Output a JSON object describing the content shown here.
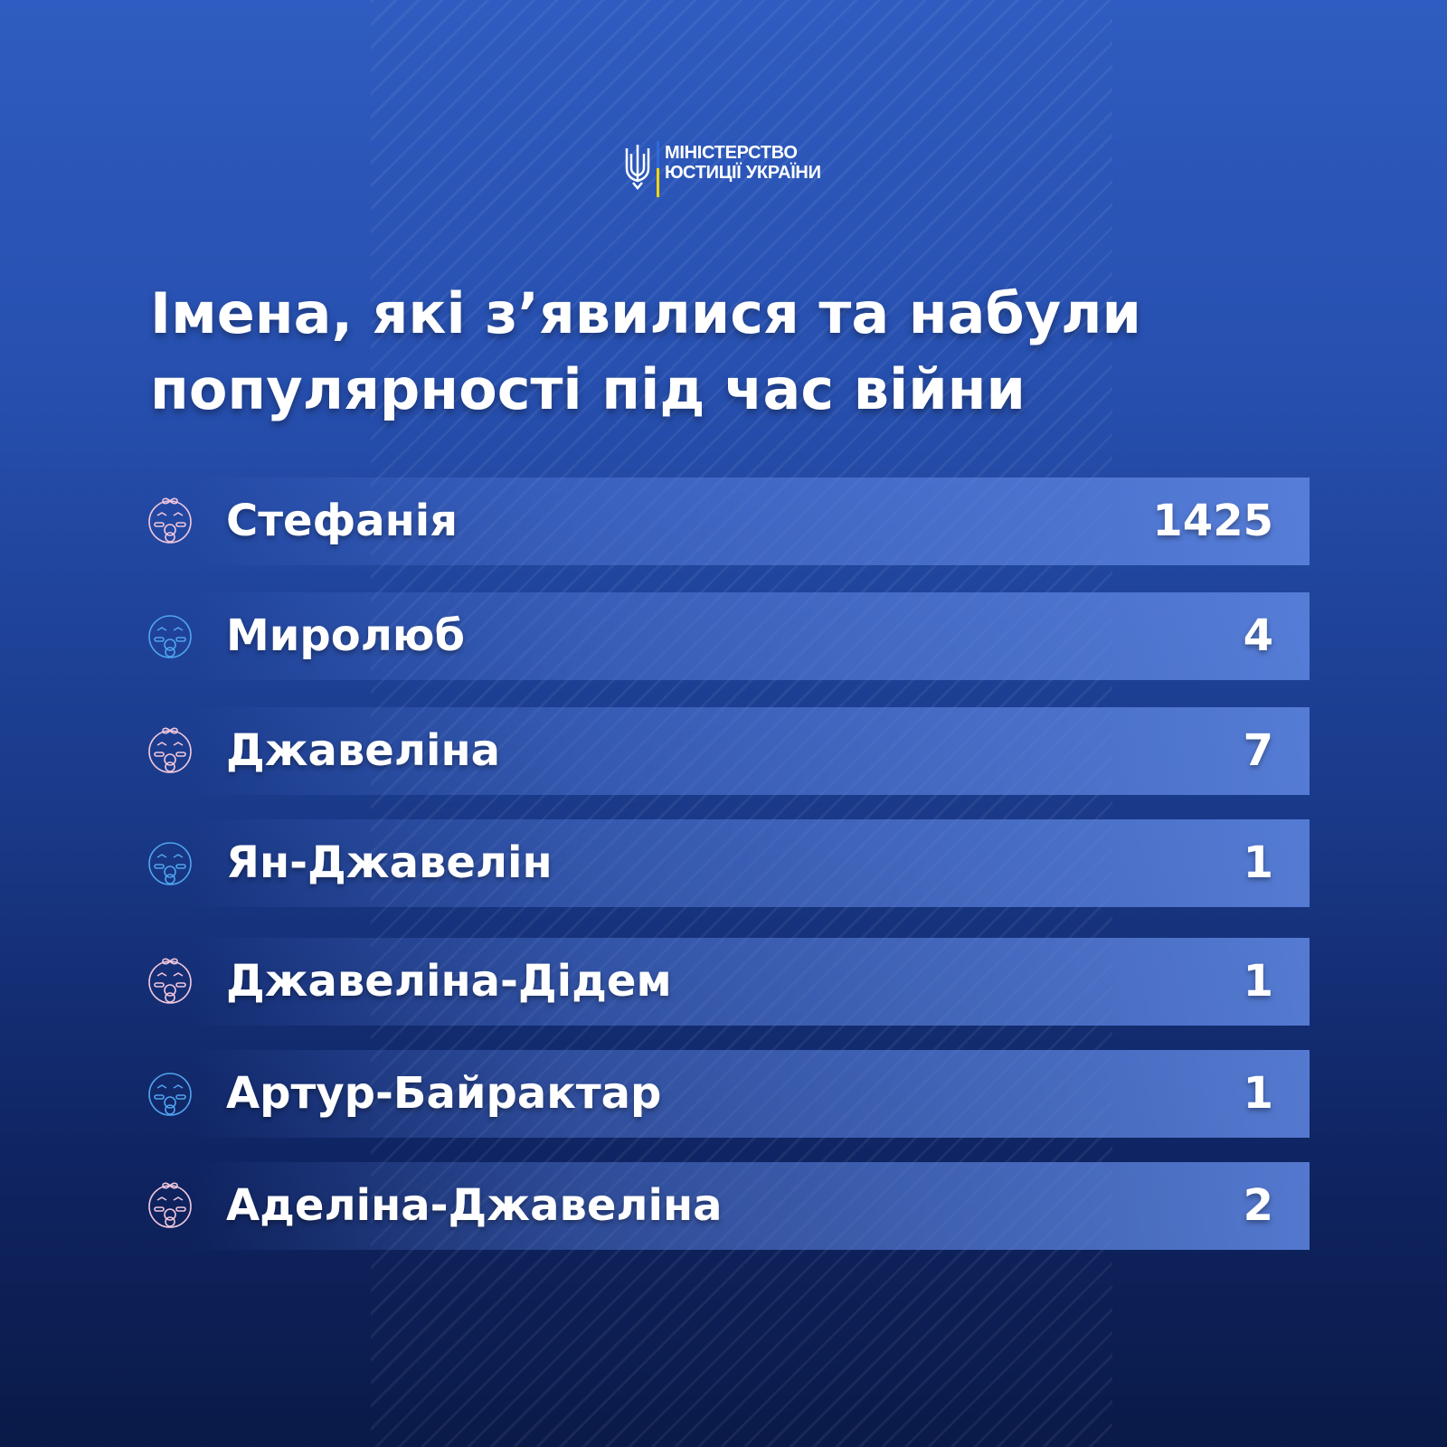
{
  "logo": {
    "line1": "МІНІСТЕРСТВО",
    "line2": "ЮСТИЦІЇ УКРАЇНИ"
  },
  "title": "Імена, які з’явилися та набули популярності під час війни",
  "colors": {
    "girl_icon": "#f0c6dc",
    "boy_icon": "#4fa3ee",
    "yellow": "#ffd500"
  },
  "names": [
    {
      "name": "Стефанія",
      "count": "1425",
      "icon": "baby-girl-icon"
    },
    {
      "name": "Миролюб",
      "count": "4",
      "icon": "baby-boy-icon"
    },
    {
      "name": "Джавеліна",
      "count": "7",
      "icon": "baby-girl-icon"
    },
    {
      "name": "Ян-Джавелін",
      "count": "1",
      "icon": "baby-boy-icon"
    },
    {
      "name": "Джавеліна-Дідем",
      "count": "1",
      "icon": "baby-girl-icon"
    },
    {
      "name": "Артур-Байрактар",
      "count": "1",
      "icon": "baby-boy-icon"
    },
    {
      "name": "Аделіна-Джавеліна",
      "count": "2",
      "icon": "baby-girl-icon"
    }
  ]
}
